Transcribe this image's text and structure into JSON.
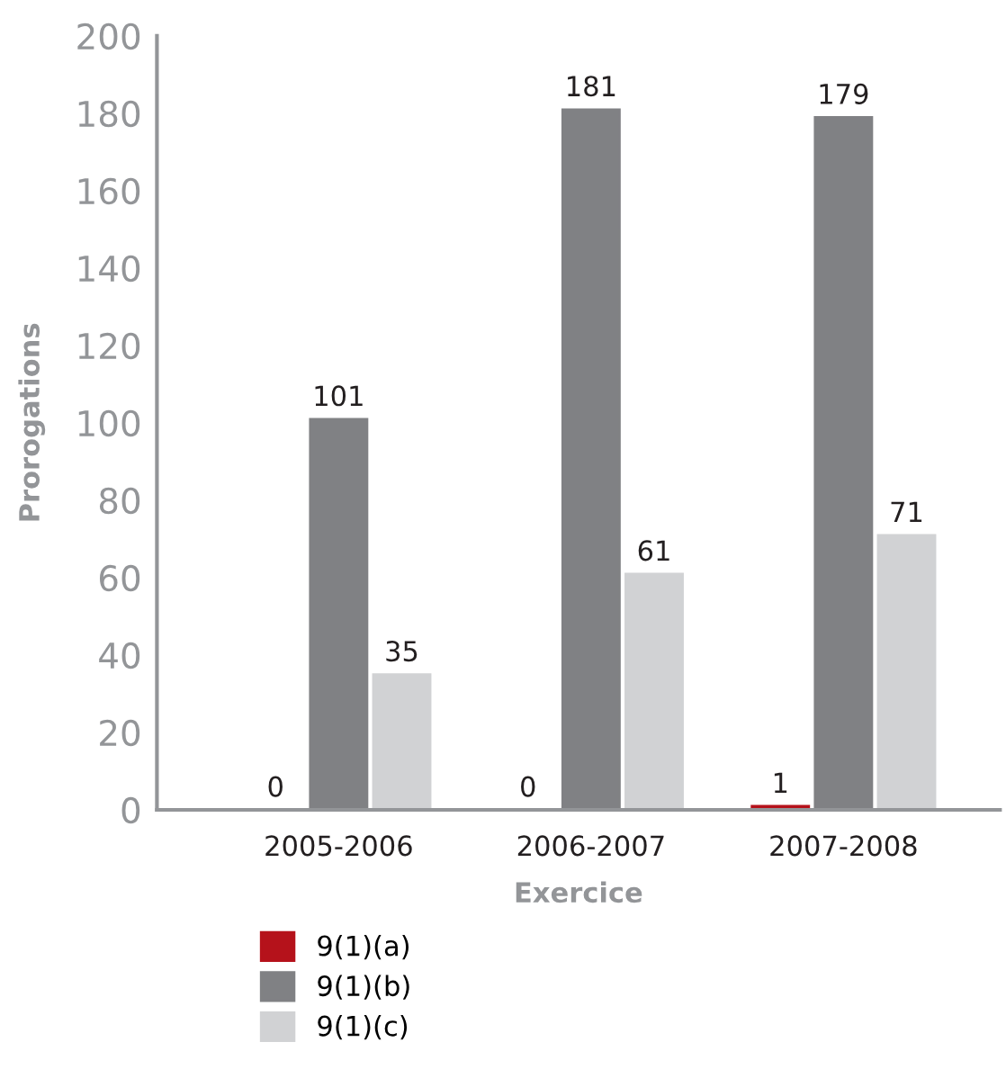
{
  "chart_data": {
    "type": "bar",
    "xlabel": "Exercice",
    "ylabel": "Prorogations",
    "categories": [
      "2005-2006",
      "2006-2007",
      "2007-2008"
    ],
    "series": [
      {
        "name": "9(1)(a)",
        "color": "#b5121b",
        "values": [
          0,
          0,
          1
        ]
      },
      {
        "name": "9(1)(b)",
        "color": "#808184",
        "values": [
          101,
          181,
          179
        ]
      },
      {
        "name": "9(1)(c)",
        "color": "#d1d2d4",
        "values": [
          35,
          61,
          71
        ]
      }
    ],
    "ylim": [
      0,
      200
    ],
    "yticks": [
      0,
      20,
      40,
      60,
      80,
      100,
      120,
      140,
      160,
      180,
      200
    ],
    "grid": false,
    "legend": "bottom left",
    "data_labels": true
  }
}
